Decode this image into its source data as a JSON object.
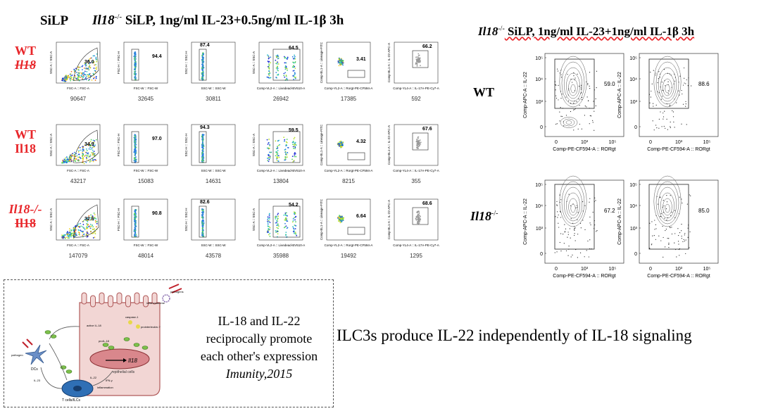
{
  "left_title": {
    "gene": "Il18",
    "sup": "-/-",
    "rest": " SiLP, 1ng/ml IL-23+0.5ng/ml IL-1β 3h"
  },
  "right_title": {
    "gene": "Il18",
    "sup": "-/-",
    "rest": " SiLP, 1ng/ml IL-23+1ng/ml IL-1β 3h"
  },
  "silp_label": "SiLP",
  "rows": [
    {
      "label_top": "WT",
      "label_bottom": "Il18",
      "label_top_italic": false,
      "values": [
        "36.0",
        "94.4",
        "87.4",
        "64.5",
        "3.41",
        "66.2"
      ],
      "counts": [
        "90647",
        "32645",
        "30811",
        "26942",
        "17385",
        "592"
      ]
    },
    {
      "label_top": "WT",
      "label_bottom": "Il18",
      "label_top_italic": false,
      "values": [
        "34.9",
        "97.0",
        "94.3",
        "59.5",
        "4.32",
        "67.6"
      ],
      "counts": [
        "43217",
        "15083",
        "14631",
        "13804",
        "8215",
        "355"
      ]
    },
    {
      "label_top": "Il18-/-",
      "label_bottom": "Il18",
      "label_top_italic": true,
      "values": [
        "32.6",
        "90.8",
        "82.6",
        "54.2",
        "6.64",
        "68.6"
      ],
      "counts": [
        "147079",
        "48014",
        "43578",
        "35988",
        "19492",
        "1295"
      ]
    }
  ],
  "axis_labels": {
    "p1_x": "FSC-A :: FSC-A",
    "p1_y": "SSC-A :: SSC-A",
    "p2_x": "FSC-W :: FSC-W",
    "p2_y": "FSC-H :: FSC-H",
    "p3_x": "SSC-W :: SSC-W",
    "p3_y": "SSC-H :: SSC-H",
    "p4_x": "Comp-VL2-A :: Livedead-BV510-A",
    "p4_y": "SSC-A :: SSC-A",
    "p5_x": "Comp-YL2-A :: Rorgt-PE-CF594-A",
    "p5_y": "Comp-BL1-A :: Lineage-FITC",
    "p6_x": "Comp-YL4-A :: IL-17A-PE-Cy7-A",
    "p6_y": "Comp-BL1-A :: IL-22-APC-A"
  },
  "right_panels": {
    "row_labels": {
      "wt": "WT",
      "ko_gene": "Il18",
      "ko_sup": "-/-"
    },
    "values": [
      "59.0",
      "88.6",
      "67.2",
      "85.0"
    ],
    "x_label": "Comp-PE-CF594-A :: RORgt",
    "y_label": "Comp-APC-A :: IL-22",
    "y_ticks": [
      "10⁵",
      "10⁴",
      "10³",
      "0"
    ],
    "x_ticks": [
      "0",
      "10³",
      "10⁵"
    ]
  },
  "box": {
    "quote_lines": [
      "IL-18 and IL-22",
      "reciprocally promote",
      "each other's expression"
    ],
    "citation": "Imunity,2015",
    "diagram_labels": {
      "pathogens": "pathogens",
      "inflammasome": "inflammasome",
      "caspase1": "caspase-1",
      "proil18": "prointerleukin-?",
      "active_il18": "active IL-18",
      "dcs": "DCs",
      "pathogen": "pathogen",
      "tcells": "T cells/ILCs",
      "epithelial": "epithelial cells",
      "il18": "Il18",
      "il22": "IL-22",
      "inflammation": "inflammation",
      "il22b": "IL-22",
      "proil18b": "proIL-18",
      "ifng": "IFN-γ",
      "il23": "IL-23"
    }
  },
  "conclusion": "ILC3s produce IL-22 independently of IL-18 signaling"
}
